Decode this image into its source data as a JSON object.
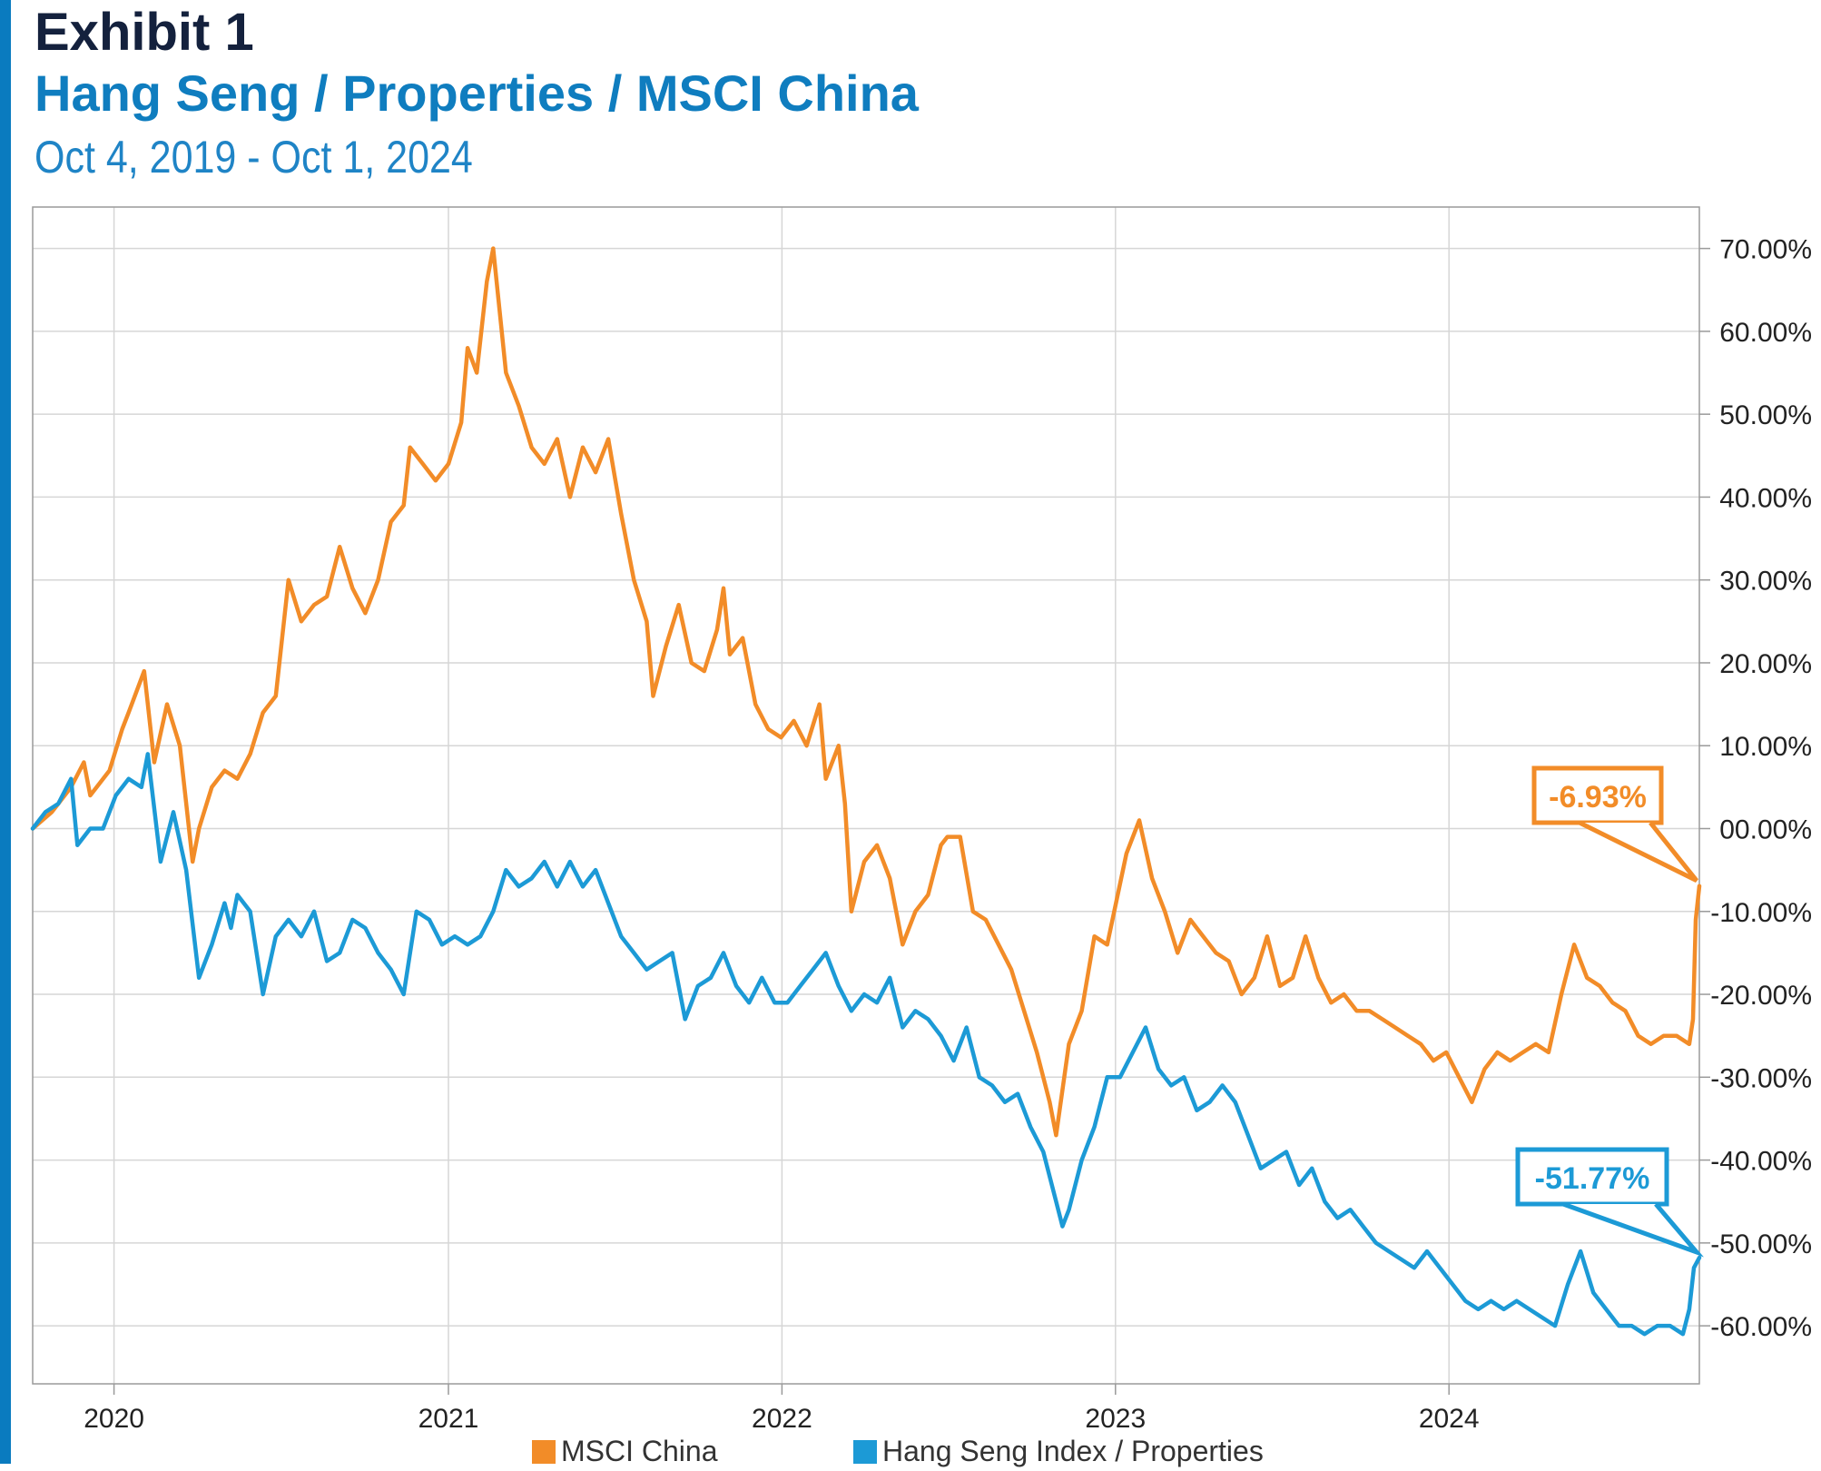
{
  "header": {
    "title": "Exhibit 1",
    "subtitle": "Hang Seng / Properties / MSCI China",
    "date_range": "Oct 4, 2019 - Oct 1, 2024"
  },
  "legend": {
    "items": [
      {
        "label": "MSCI China",
        "color": "#f28c28"
      },
      {
        "label": "Hang Seng Index / Properties",
        "color": "#1c9ad6"
      }
    ]
  },
  "chart_data": {
    "type": "line",
    "title": "Hang Seng / Properties / MSCI China",
    "x_start": "2019-10-04",
    "x_end": "2024-10-01",
    "xtick_labels": [
      "2020",
      "2021",
      "2022",
      "2023",
      "2024"
    ],
    "xtick_dates": [
      "2020-01-01",
      "2021-01-01",
      "2022-01-01",
      "2023-01-01",
      "2024-01-01"
    ],
    "ylim": [
      -67,
      75
    ],
    "ytick_values": [
      70,
      60,
      50,
      40,
      30,
      20,
      10,
      0,
      -10,
      -20,
      -30,
      -40,
      -50,
      -60
    ],
    "ytick_labels": [
      "70.00%",
      "60.00%",
      "50.00%",
      "40.00%",
      "30.00%",
      "20.00%",
      "10.00%",
      "00.00%",
      "-10.00%",
      "-20.00%",
      "-30.00%",
      "-40.00%",
      "-50.00%",
      "-60.00%"
    ],
    "y_axis_position": "right",
    "grid": true,
    "legend_position": "bottom",
    "series": [
      {
        "name": "MSCI China",
        "color": "#f28c28",
        "end_label": "-6.93%",
        "points": [
          [
            "2019-10-04",
            0
          ],
          [
            "2019-10-25",
            2
          ],
          [
            "2019-11-15",
            5
          ],
          [
            "2019-11-29",
            8
          ],
          [
            "2019-12-06",
            4
          ],
          [
            "2019-12-27",
            7
          ],
          [
            "2020-01-10",
            12
          ],
          [
            "2020-01-17",
            14
          ],
          [
            "2020-02-03",
            19
          ],
          [
            "2020-02-14",
            8
          ],
          [
            "2020-02-28",
            15
          ],
          [
            "2020-03-13",
            10
          ],
          [
            "2020-03-27",
            -4
          ],
          [
            "2020-04-03",
            0
          ],
          [
            "2020-04-17",
            5
          ],
          [
            "2020-05-01",
            7
          ],
          [
            "2020-05-15",
            6
          ],
          [
            "2020-05-29",
            9
          ],
          [
            "2020-06-12",
            14
          ],
          [
            "2020-06-26",
            16
          ],
          [
            "2020-07-10",
            30
          ],
          [
            "2020-07-24",
            25
          ],
          [
            "2020-08-07",
            27
          ],
          [
            "2020-08-21",
            28
          ],
          [
            "2020-09-04",
            34
          ],
          [
            "2020-09-18",
            29
          ],
          [
            "2020-10-02",
            26
          ],
          [
            "2020-10-16",
            30
          ],
          [
            "2020-10-30",
            37
          ],
          [
            "2020-11-13",
            39
          ],
          [
            "2020-11-20",
            46
          ],
          [
            "2020-12-04",
            44
          ],
          [
            "2020-12-18",
            42
          ],
          [
            "2021-01-01",
            44
          ],
          [
            "2021-01-15",
            49
          ],
          [
            "2021-01-22",
            58
          ],
          [
            "2021-02-01",
            55
          ],
          [
            "2021-02-12",
            66
          ],
          [
            "2021-02-19",
            70
          ],
          [
            "2021-03-05",
            55
          ],
          [
            "2021-03-19",
            51
          ],
          [
            "2021-04-02",
            46
          ],
          [
            "2021-04-16",
            44
          ],
          [
            "2021-04-30",
            47
          ],
          [
            "2021-05-14",
            40
          ],
          [
            "2021-05-28",
            46
          ],
          [
            "2021-06-11",
            43
          ],
          [
            "2021-06-25",
            47
          ],
          [
            "2021-07-09",
            38
          ],
          [
            "2021-07-23",
            30
          ],
          [
            "2021-08-06",
            25
          ],
          [
            "2021-08-13",
            16
          ],
          [
            "2021-08-27",
            22
          ],
          [
            "2021-09-10",
            27
          ],
          [
            "2021-09-24",
            20
          ],
          [
            "2021-10-08",
            19
          ],
          [
            "2021-10-22",
            24
          ],
          [
            "2021-10-29",
            29
          ],
          [
            "2021-11-05",
            21
          ],
          [
            "2021-11-19",
            23
          ],
          [
            "2021-12-03",
            15
          ],
          [
            "2021-12-17",
            12
          ],
          [
            "2021-12-31",
            11
          ],
          [
            "2022-01-14",
            13
          ],
          [
            "2022-01-28",
            10
          ],
          [
            "2022-02-11",
            15
          ],
          [
            "2022-02-18",
            6
          ],
          [
            "2022-03-04",
            10
          ],
          [
            "2022-03-11",
            3
          ],
          [
            "2022-03-18",
            -10
          ],
          [
            "2022-04-01",
            -4
          ],
          [
            "2022-04-15",
            -2
          ],
          [
            "2022-04-29",
            -6
          ],
          [
            "2022-05-13",
            -14
          ],
          [
            "2022-05-27",
            -10
          ],
          [
            "2022-06-10",
            -8
          ],
          [
            "2022-06-24",
            -2
          ],
          [
            "2022-07-01",
            -1
          ],
          [
            "2022-07-15",
            -1
          ],
          [
            "2022-07-29",
            -10
          ],
          [
            "2022-08-12",
            -11
          ],
          [
            "2022-08-26",
            -14
          ],
          [
            "2022-09-09",
            -17
          ],
          [
            "2022-09-23",
            -22
          ],
          [
            "2022-10-07",
            -27
          ],
          [
            "2022-10-21",
            -33
          ],
          [
            "2022-10-28",
            -37
          ],
          [
            "2022-11-11",
            -26
          ],
          [
            "2022-11-25",
            -22
          ],
          [
            "2022-12-09",
            -13
          ],
          [
            "2022-12-23",
            -14
          ],
          [
            "2023-01-13",
            -3
          ],
          [
            "2023-01-27",
            1
          ],
          [
            "2023-02-10",
            -6
          ],
          [
            "2023-02-24",
            -10
          ],
          [
            "2023-03-10",
            -15
          ],
          [
            "2023-03-24",
            -11
          ],
          [
            "2023-04-07",
            -13
          ],
          [
            "2023-04-21",
            -15
          ],
          [
            "2023-05-05",
            -16
          ],
          [
            "2023-05-19",
            -20
          ],
          [
            "2023-06-02",
            -18
          ],
          [
            "2023-06-16",
            -13
          ],
          [
            "2023-06-30",
            -19
          ],
          [
            "2023-07-14",
            -18
          ],
          [
            "2023-07-28",
            -13
          ],
          [
            "2023-08-11",
            -18
          ],
          [
            "2023-08-25",
            -21
          ],
          [
            "2023-09-08",
            -20
          ],
          [
            "2023-09-22",
            -22
          ],
          [
            "2023-10-06",
            -22
          ],
          [
            "2023-10-20",
            -23
          ],
          [
            "2023-11-03",
            -24
          ],
          [
            "2023-11-17",
            -25
          ],
          [
            "2023-12-01",
            -26
          ],
          [
            "2023-12-15",
            -28
          ],
          [
            "2023-12-29",
            -27
          ],
          [
            "2024-01-12",
            -30
          ],
          [
            "2024-01-26",
            -33
          ],
          [
            "2024-02-09",
            -29
          ],
          [
            "2024-02-23",
            -27
          ],
          [
            "2024-03-08",
            -28
          ],
          [
            "2024-03-22",
            -27
          ],
          [
            "2024-04-05",
            -26
          ],
          [
            "2024-04-19",
            -27
          ],
          [
            "2024-05-03",
            -20
          ],
          [
            "2024-05-17",
            -14
          ],
          [
            "2024-05-31",
            -18
          ],
          [
            "2024-06-14",
            -19
          ],
          [
            "2024-06-28",
            -21
          ],
          [
            "2024-07-12",
            -22
          ],
          [
            "2024-07-26",
            -25
          ],
          [
            "2024-08-09",
            -26
          ],
          [
            "2024-08-23",
            -25
          ],
          [
            "2024-09-06",
            -25
          ],
          [
            "2024-09-20",
            -26
          ],
          [
            "2024-09-24",
            -23
          ],
          [
            "2024-09-27",
            -11
          ],
          [
            "2024-10-01",
            -6.93
          ]
        ]
      },
      {
        "name": "Hang Seng Index / Properties",
        "color": "#1c9ad6",
        "end_label": "-51.77%",
        "points": [
          [
            "2019-10-04",
            0
          ],
          [
            "2019-10-18",
            2
          ],
          [
            "2019-11-01",
            3
          ],
          [
            "2019-11-15",
            6
          ],
          [
            "2019-11-22",
            -2
          ],
          [
            "2019-12-06",
            0
          ],
          [
            "2019-12-20",
            0
          ],
          [
            "2020-01-03",
            4
          ],
          [
            "2020-01-17",
            6
          ],
          [
            "2020-01-31",
            5
          ],
          [
            "2020-02-07",
            9
          ],
          [
            "2020-02-21",
            -4
          ],
          [
            "2020-03-06",
            2
          ],
          [
            "2020-03-20",
            -5
          ],
          [
            "2020-04-03",
            -18
          ],
          [
            "2020-04-17",
            -14
          ],
          [
            "2020-05-01",
            -9
          ],
          [
            "2020-05-08",
            -12
          ],
          [
            "2020-05-15",
            -8
          ],
          [
            "2020-05-29",
            -10
          ],
          [
            "2020-06-12",
            -20
          ],
          [
            "2020-06-26",
            -13
          ],
          [
            "2020-07-10",
            -11
          ],
          [
            "2020-07-24",
            -13
          ],
          [
            "2020-08-07",
            -10
          ],
          [
            "2020-08-21",
            -16
          ],
          [
            "2020-09-04",
            -15
          ],
          [
            "2020-09-18",
            -11
          ],
          [
            "2020-10-02",
            -12
          ],
          [
            "2020-10-16",
            -15
          ],
          [
            "2020-10-30",
            -17
          ],
          [
            "2020-11-13",
            -20
          ],
          [
            "2020-11-27",
            -10
          ],
          [
            "2020-12-11",
            -11
          ],
          [
            "2020-12-25",
            -14
          ],
          [
            "2021-01-08",
            -13
          ],
          [
            "2021-01-22",
            -14
          ],
          [
            "2021-02-05",
            -13
          ],
          [
            "2021-02-19",
            -10
          ],
          [
            "2021-03-05",
            -5
          ],
          [
            "2021-03-19",
            -7
          ],
          [
            "2021-04-02",
            -6
          ],
          [
            "2021-04-16",
            -4
          ],
          [
            "2021-04-30",
            -7
          ],
          [
            "2021-05-14",
            -4
          ],
          [
            "2021-05-28",
            -7
          ],
          [
            "2021-06-11",
            -5
          ],
          [
            "2021-06-25",
            -9
          ],
          [
            "2021-07-09",
            -13
          ],
          [
            "2021-07-23",
            -15
          ],
          [
            "2021-08-06",
            -17
          ],
          [
            "2021-08-20",
            -16
          ],
          [
            "2021-09-03",
            -15
          ],
          [
            "2021-09-17",
            -23
          ],
          [
            "2021-10-01",
            -19
          ],
          [
            "2021-10-15",
            -18
          ],
          [
            "2021-10-29",
            -15
          ],
          [
            "2021-11-12",
            -19
          ],
          [
            "2021-11-26",
            -21
          ],
          [
            "2021-12-10",
            -18
          ],
          [
            "2021-12-24",
            -21
          ],
          [
            "2022-01-07",
            -21
          ],
          [
            "2022-01-21",
            -19
          ],
          [
            "2022-02-04",
            -17
          ],
          [
            "2022-02-18",
            -15
          ],
          [
            "2022-03-04",
            -19
          ],
          [
            "2022-03-18",
            -22
          ],
          [
            "2022-04-01",
            -20
          ],
          [
            "2022-04-15",
            -21
          ],
          [
            "2022-04-29",
            -18
          ],
          [
            "2022-05-13",
            -24
          ],
          [
            "2022-05-27",
            -22
          ],
          [
            "2022-06-10",
            -23
          ],
          [
            "2022-06-24",
            -25
          ],
          [
            "2022-07-08",
            -28
          ],
          [
            "2022-07-22",
            -24
          ],
          [
            "2022-08-05",
            -30
          ],
          [
            "2022-08-19",
            -31
          ],
          [
            "2022-09-02",
            -33
          ],
          [
            "2022-09-16",
            -32
          ],
          [
            "2022-09-30",
            -36
          ],
          [
            "2022-10-14",
            -39
          ],
          [
            "2022-10-28",
            -45
          ],
          [
            "2022-11-04",
            -48
          ],
          [
            "2022-11-11",
            -46
          ],
          [
            "2022-11-25",
            -40
          ],
          [
            "2022-12-09",
            -36
          ],
          [
            "2022-12-23",
            -30
          ],
          [
            "2023-01-06",
            -30
          ],
          [
            "2023-01-20",
            -27
          ],
          [
            "2023-02-03",
            -24
          ],
          [
            "2023-02-17",
            -29
          ],
          [
            "2023-03-03",
            -31
          ],
          [
            "2023-03-17",
            -30
          ],
          [
            "2023-03-31",
            -34
          ],
          [
            "2023-04-14",
            -33
          ],
          [
            "2023-04-28",
            -31
          ],
          [
            "2023-05-12",
            -33
          ],
          [
            "2023-05-26",
            -37
          ],
          [
            "2023-06-09",
            -41
          ],
          [
            "2023-06-23",
            -40
          ],
          [
            "2023-07-07",
            -39
          ],
          [
            "2023-07-21",
            -43
          ],
          [
            "2023-08-04",
            -41
          ],
          [
            "2023-08-18",
            -45
          ],
          [
            "2023-09-01",
            -47
          ],
          [
            "2023-09-15",
            -46
          ],
          [
            "2023-09-29",
            -48
          ],
          [
            "2023-10-13",
            -50
          ],
          [
            "2023-10-27",
            -51
          ],
          [
            "2023-11-10",
            -52
          ],
          [
            "2023-11-24",
            -53
          ],
          [
            "2023-12-08",
            -51
          ],
          [
            "2023-12-22",
            -53
          ],
          [
            "2024-01-05",
            -55
          ],
          [
            "2024-01-19",
            -57
          ],
          [
            "2024-02-02",
            -58
          ],
          [
            "2024-02-16",
            -57
          ],
          [
            "2024-03-01",
            -58
          ],
          [
            "2024-03-15",
            -57
          ],
          [
            "2024-03-29",
            -58
          ],
          [
            "2024-04-12",
            -59
          ],
          [
            "2024-04-26",
            -60
          ],
          [
            "2024-05-10",
            -55
          ],
          [
            "2024-05-24",
            -51
          ],
          [
            "2024-06-07",
            -56
          ],
          [
            "2024-06-21",
            -58
          ],
          [
            "2024-07-05",
            -60
          ],
          [
            "2024-07-19",
            -60
          ],
          [
            "2024-08-02",
            -61
          ],
          [
            "2024-08-16",
            -60
          ],
          [
            "2024-08-30",
            -60
          ],
          [
            "2024-09-13",
            -61
          ],
          [
            "2024-09-20",
            -58
          ],
          [
            "2024-09-25",
            -53
          ],
          [
            "2024-10-01",
            -51.77
          ]
        ]
      }
    ]
  }
}
